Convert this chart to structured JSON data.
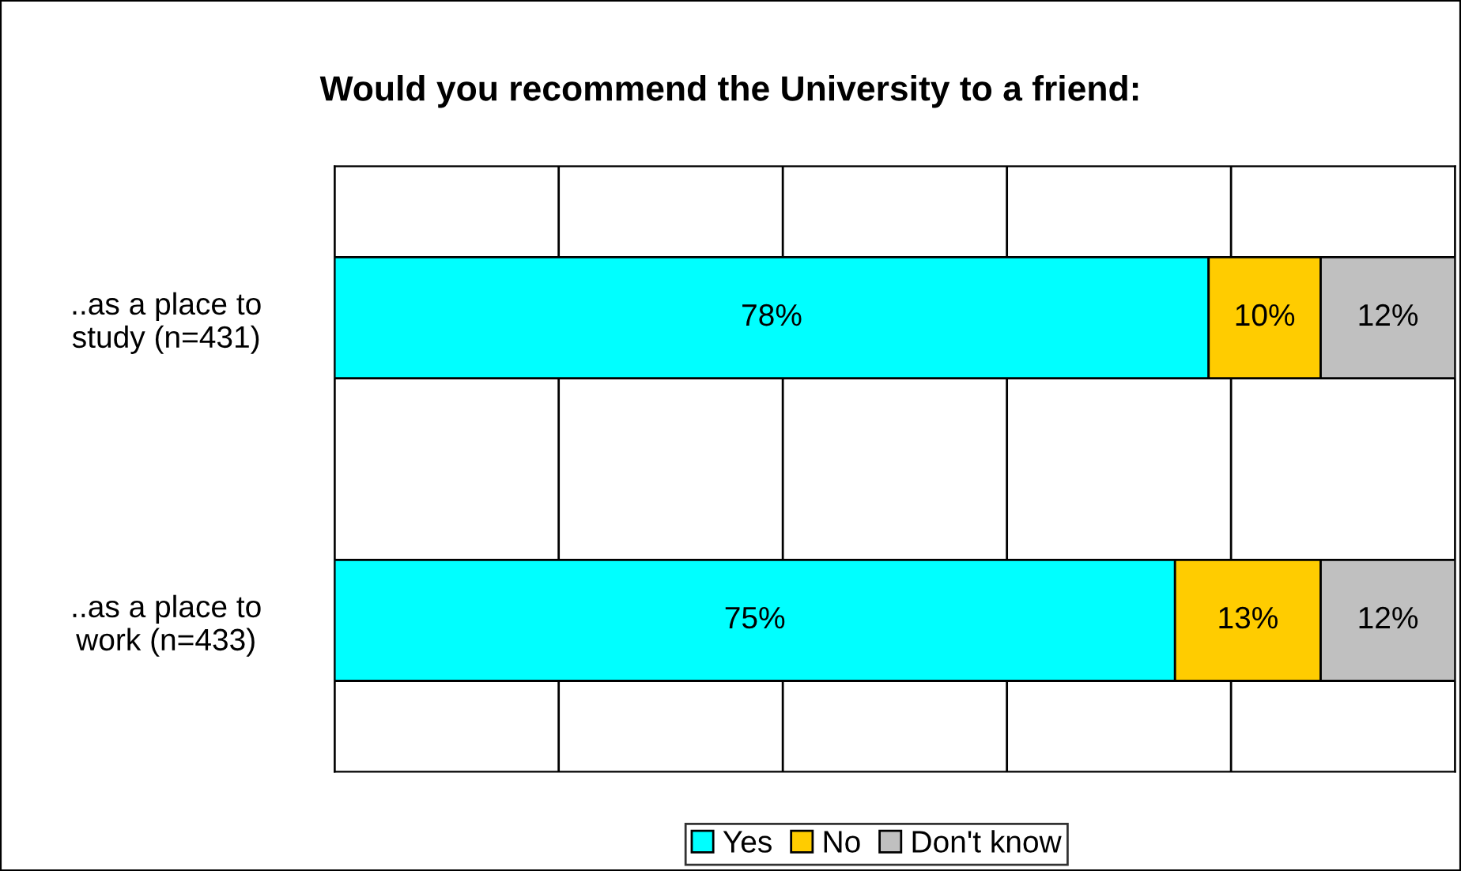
{
  "chart_data": {
    "type": "bar",
    "orientation": "horizontal",
    "stacked": true,
    "title": "Would you recommend the University to a friend:",
    "categories": [
      "..as a place to\nstudy (n=431)",
      "..as a place to\nwork (n=433)"
    ],
    "series": [
      {
        "name": "Yes",
        "color": "#00ffff",
        "values": [
          78,
          75
        ],
        "value_labels": [
          "78%",
          "75%"
        ]
      },
      {
        "name": "No",
        "color": "#ffcc00",
        "values": [
          10,
          13
        ],
        "value_labels": [
          "10%",
          "13%"
        ]
      },
      {
        "name": "Don't know",
        "color": "#c0c0c0",
        "values": [
          12,
          12
        ],
        "value_labels": [
          "12%",
          "12%"
        ]
      }
    ],
    "xlim": [
      0,
      100
    ],
    "xticks": [
      {
        "value": 0,
        "label": null
      },
      {
        "value": 20,
        "label": null
      },
      {
        "value": 40,
        "label": null
      },
      {
        "value": 60,
        "label": null
      },
      {
        "value": 80,
        "label": null
      },
      {
        "value": 100,
        "label": null
      }
    ],
    "grid": "x",
    "legend": "bottom",
    "tick_labels": "y"
  }
}
